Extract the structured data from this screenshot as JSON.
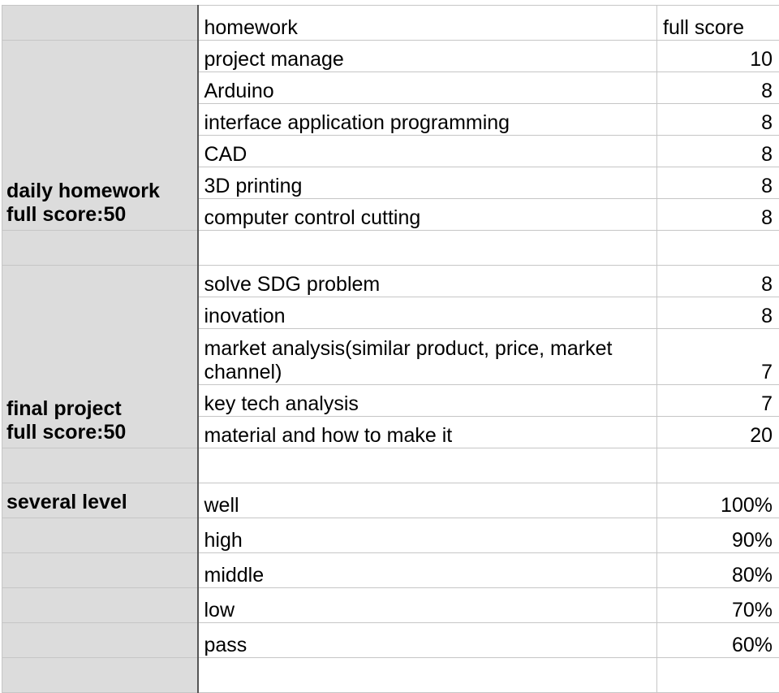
{
  "header": {
    "homework": "homework",
    "full_score": "full score"
  },
  "daily": {
    "label_line1": "daily homework",
    "label_line2": "full score:50",
    "rows": [
      {
        "name": "project manage",
        "score": "10"
      },
      {
        "name": "Arduino",
        "score": "8"
      },
      {
        "name": "interface application programming",
        "score": "8"
      },
      {
        "name": "CAD",
        "score": "8"
      },
      {
        "name": "3D printing",
        "score": "8"
      },
      {
        "name": "computer control cutting",
        "score": "8"
      }
    ]
  },
  "final": {
    "label_line1": "final project",
    "label_line2": "full score:50",
    "rows": [
      {
        "name": "solve SDG  problem",
        "score": "8"
      },
      {
        "name": "inovation",
        "score": "8"
      },
      {
        "name": "market analysis(similar product, price, market channel)",
        "score": "7"
      },
      {
        "name": "key tech analysis",
        "score": "7"
      },
      {
        "name": "material and how to make it",
        "score": "20"
      }
    ]
  },
  "levels": {
    "label": "several level",
    "rows": [
      {
        "name": "well",
        "score": "100%"
      },
      {
        "name": "high",
        "score": "90%"
      },
      {
        "name": "middle",
        "score": "80%"
      },
      {
        "name": "low",
        "score": "70%"
      },
      {
        "name": "pass",
        "score": "60%"
      }
    ]
  }
}
